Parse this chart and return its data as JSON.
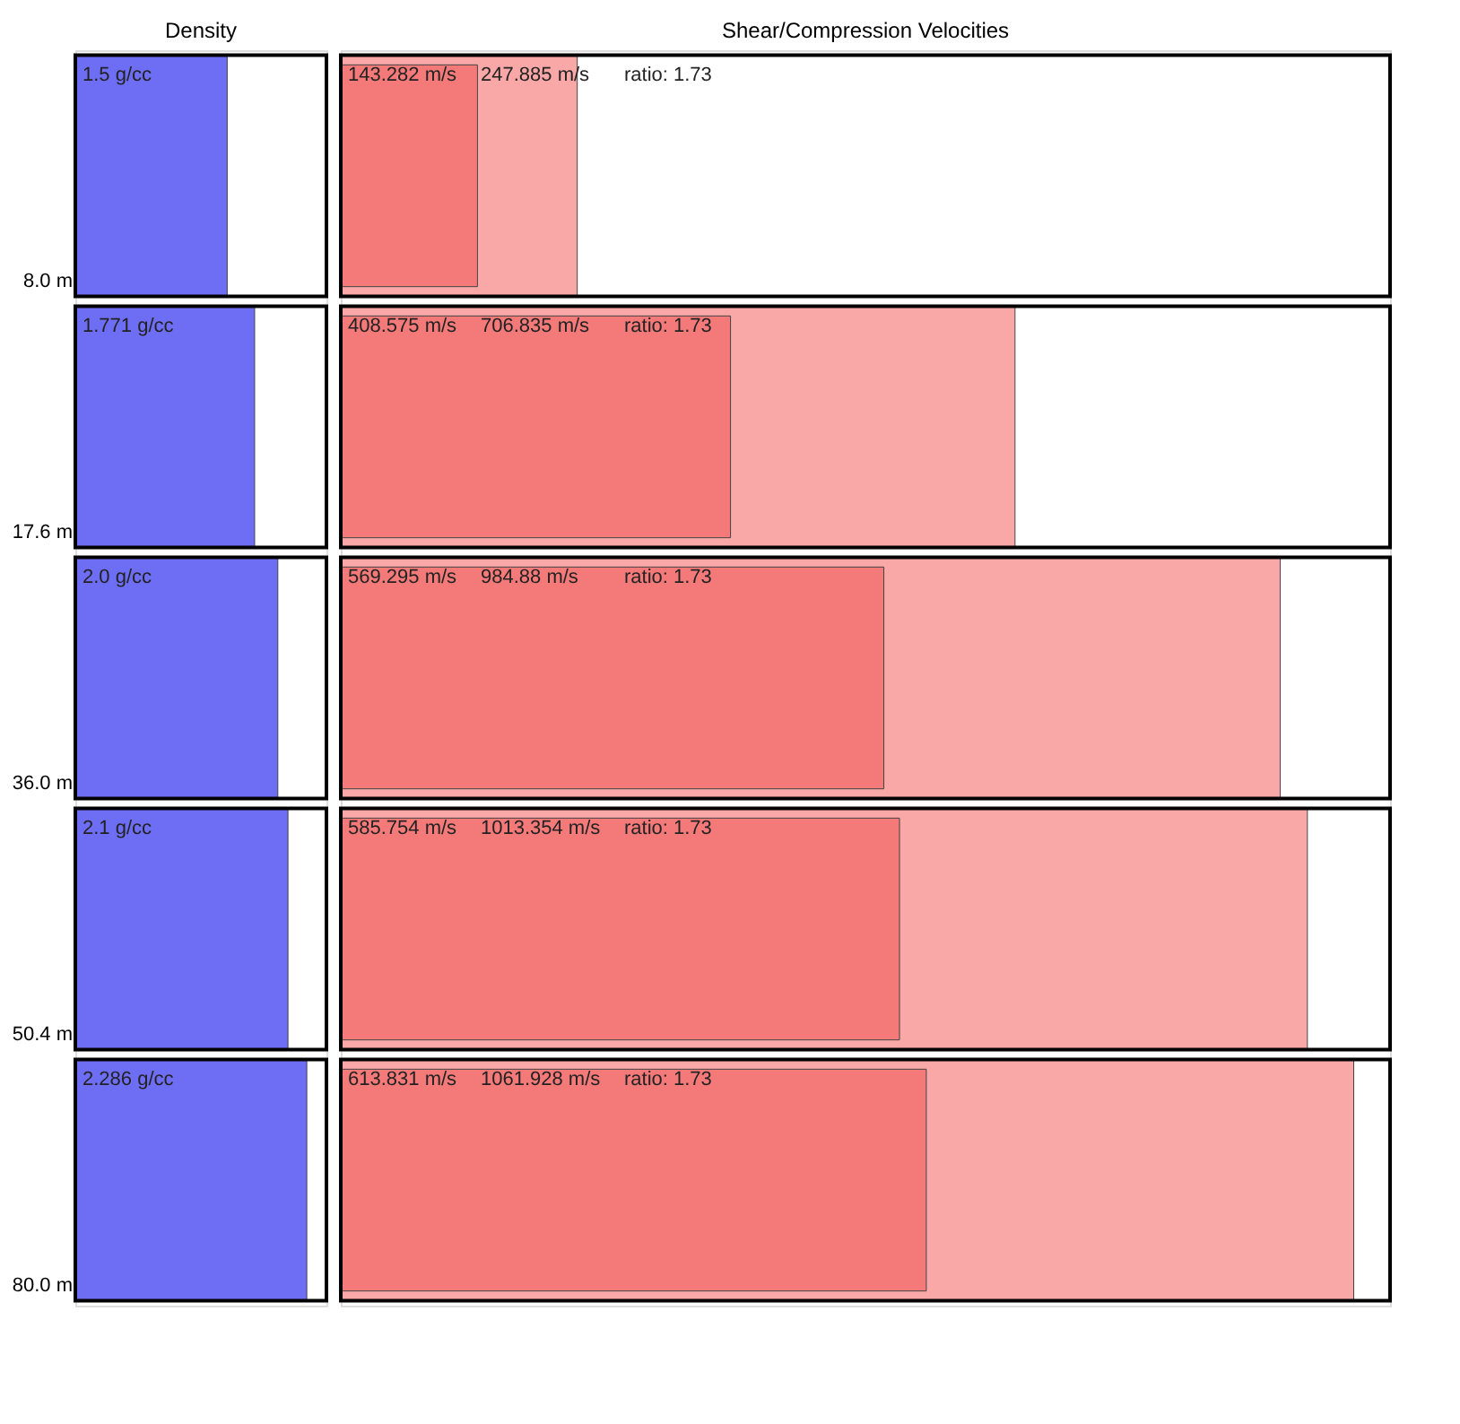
{
  "chart_data": [
    {
      "type": "bar",
      "title": "Density",
      "orientation": "horizontal",
      "categories": [
        "8.0 m",
        "17.6 m",
        "36.0 m",
        "50.4 m",
        "80.0 m"
      ],
      "xlim": [
        0,
        2.48
      ],
      "tick_labels": "y",
      "series": [
        {
          "color": "#6e6ef5",
          "values": [
            1.5,
            1.771,
            2.0,
            2.1,
            2.286
          ],
          "value_labels": [
            "1.5 g/cc",
            "1.771 g/cc",
            "2.0 g/cc",
            "2.1 g/cc",
            "2.286 g/cc"
          ]
        }
      ]
    },
    {
      "type": "bar",
      "title": "Shear/Compression Velocities",
      "orientation": "horizontal",
      "categories": [
        null,
        null,
        null,
        null,
        null
      ],
      "xlim": [
        0,
        1100
      ],
      "tick_labels": false,
      "series": [
        {
          "color": "#f47a7a",
          "values": [
            143.282,
            408.575,
            569.295,
            585.754,
            613.831
          ],
          "value_labels": [
            "143.282 m/s",
            "408.575 m/s",
            "569.295 m/s",
            "585.754 m/s",
            "613.831 m/s"
          ]
        },
        {
          "color": "#f9a7a7",
          "values": [
            247.885,
            706.835,
            984.88,
            1013.354,
            1061.928
          ],
          "value_labels": [
            "247.885 m/s",
            "706.835 m/s",
            "984.88 m/s",
            "1013.354 m/s",
            "1061.928 m/s"
          ]
        }
      ],
      "annotations": [
        "ratio: 1.73",
        "ratio: 1.73",
        "ratio: 1.73",
        "ratio: 1.73",
        "ratio: 1.73"
      ]
    }
  ]
}
